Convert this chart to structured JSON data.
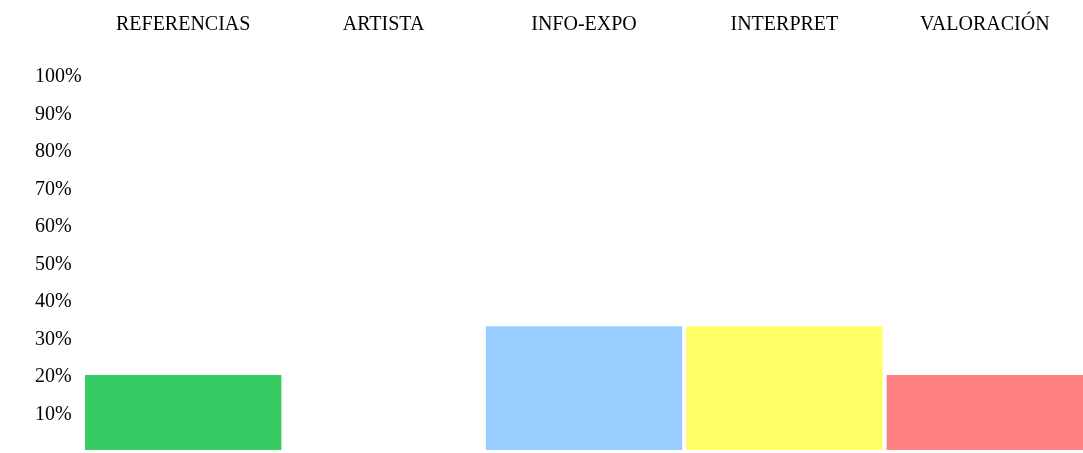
{
  "chart_data": {
    "type": "bar",
    "categories": [
      "REFERENCIAS",
      "ARTISTA",
      "INFO-EXPO",
      "INTERPRET",
      "VALORACIÓN"
    ],
    "values": [
      20,
      0,
      33,
      33,
      20
    ],
    "colors": [
      "#37cc63",
      "#ffffff",
      "#99ccff",
      "#ffff66",
      "#ff8080"
    ],
    "ylim": [
      0,
      100
    ],
    "yticks": [
      {
        "value": 10,
        "label": "10%"
      },
      {
        "value": 20,
        "label": "20%"
      },
      {
        "value": 30,
        "label": "30%"
      },
      {
        "value": 40,
        "label": "40%"
      },
      {
        "value": 50,
        "label": "50%"
      },
      {
        "value": 60,
        "label": "60%"
      },
      {
        "value": 70,
        "label": "70%"
      },
      {
        "value": 80,
        "label": "80%"
      },
      {
        "value": 90,
        "label": "90%"
      },
      {
        "value": 100,
        "label": "100%"
      }
    ],
    "grid": false
  }
}
